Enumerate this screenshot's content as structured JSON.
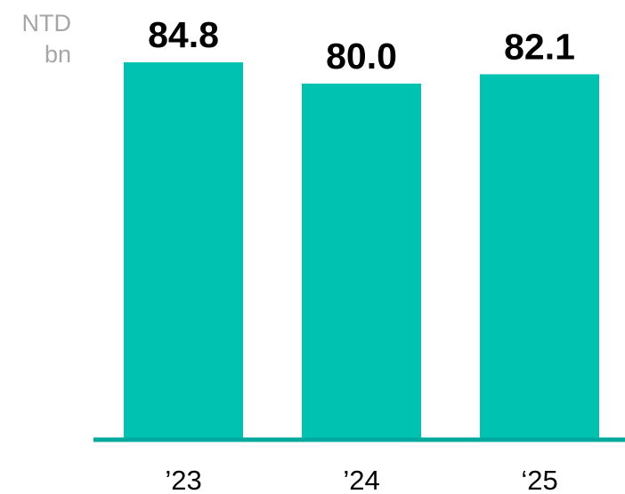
{
  "chart_data": {
    "type": "bar",
    "unit_label": [
      "NTD",
      "bn"
    ],
    "categories": [
      "’23",
      "’24",
      "‘25"
    ],
    "values": [
      84.8,
      80.0,
      82.1
    ],
    "value_labels": [
      "84.8",
      "80.0",
      "82.1"
    ],
    "ylim": [
      0,
      84.8
    ],
    "grid": false,
    "legend": "none",
    "colors": {
      "bar": "#00c2b1",
      "axis": "#00a99d",
      "value_text": "#000000",
      "tick_text": "#000000",
      "unit_text": "#a6a6a6"
    }
  }
}
